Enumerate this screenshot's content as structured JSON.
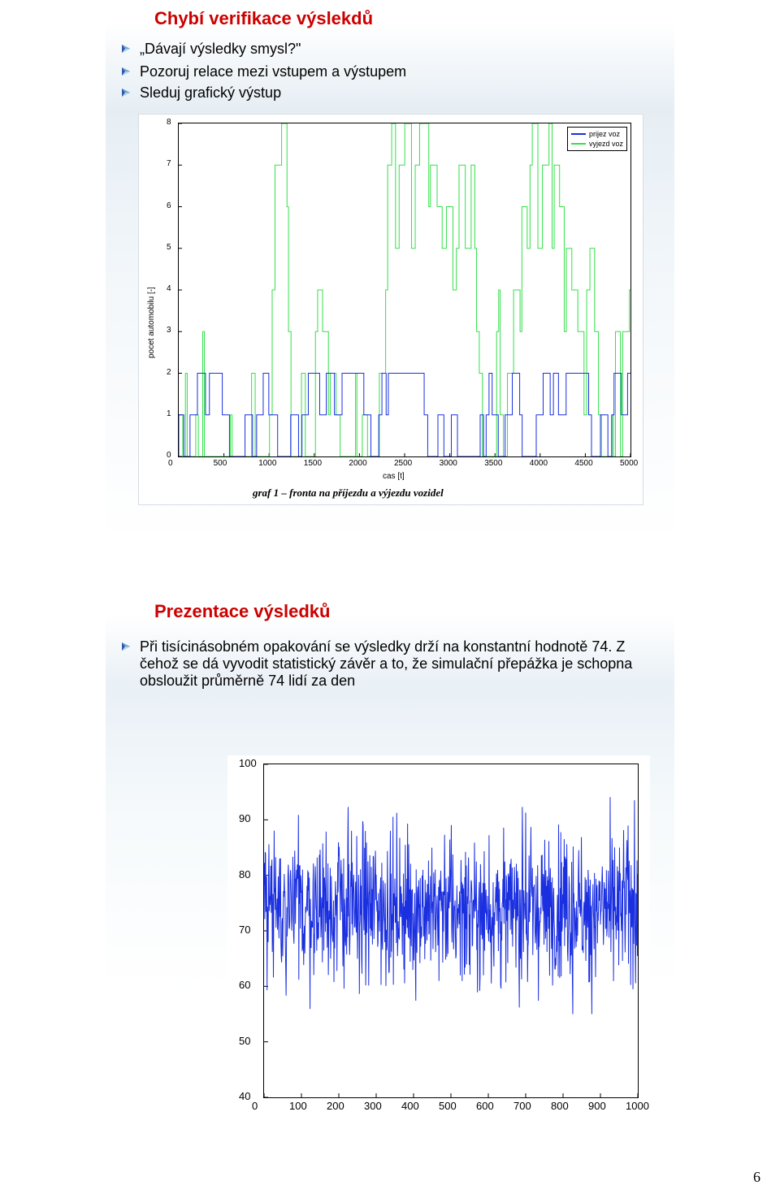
{
  "page_number": "6",
  "bullet_glyph": {
    "colors": [
      "#2e5aa8",
      "#6fa7d6",
      "#b9d2e8"
    ]
  },
  "slide1": {
    "heading": "Chybí verifikace výslekdů",
    "heading_fontsize": 22,
    "bullets": [
      "„Dávají výsledky smysl?\"",
      " Pozoruj relace mezi vstupem a výstupem",
      " Sleduj grafický výstup"
    ],
    "bullet_fontsize": 18,
    "chart": {
      "type": "line",
      "caption": "graf 1 – fronta na příjezdu a výjezdu vozidel",
      "caption_fontsize": 12,
      "ylabel": "pocet automobilu [-]",
      "xlabel": "cas [t]",
      "label_fontsize": 10,
      "xlim": [
        0,
        5000
      ],
      "ylim": [
        0,
        8
      ],
      "xticks": [
        0,
        500,
        1000,
        1500,
        2000,
        2500,
        3000,
        3500,
        4000,
        4500,
        5000
      ],
      "yticks": [
        0,
        1,
        2,
        3,
        4,
        5,
        6,
        7,
        8
      ],
      "tick_fontsize": 10,
      "background_color": "#ffffff",
      "axis_color": "#000000",
      "legend": {
        "items": [
          {
            "label": "prijez voz",
            "color": "#1a2fe0"
          },
          {
            "label": "vyjezd voz",
            "color": "#33e04a"
          }
        ]
      },
      "series": [
        {
          "color": "#1a2fe0",
          "style": "step",
          "values_approx": "dense integer steps 0-2 throughout domain"
        },
        {
          "color": "#33e04a",
          "style": "step",
          "values_approx": "dense integer steps 0-8 throughout domain"
        }
      ]
    }
  },
  "slide2": {
    "heading": "Prezentace výsledků",
    "heading_fontsize": 22,
    "bullets": [
      "Při tisícinásobném opakování  se výsledky drží na konstantní hodnotě 74.",
      " Z čehož se dá vyvodit statistický závěr a to, že simulační přepážka je schopna obsloužit průměrně 74 lidí za den"
    ],
    "bullet_fontsize": 18,
    "chart": {
      "type": "line",
      "xlim": [
        0,
        1000
      ],
      "ylim": [
        40,
        100
      ],
      "xticks": [
        0,
        100,
        200,
        300,
        400,
        500,
        600,
        700,
        800,
        900,
        1000
      ],
      "yticks": [
        40,
        50,
        60,
        70,
        80,
        90,
        100
      ],
      "tick_fontsize": 13,
      "background_color": "#ffffff",
      "axis_color": "#000000",
      "series": [
        {
          "color": "#1a2fe0",
          "style": "noisy-line",
          "mean": 74,
          "range": [
            55,
            95
          ]
        }
      ]
    }
  }
}
